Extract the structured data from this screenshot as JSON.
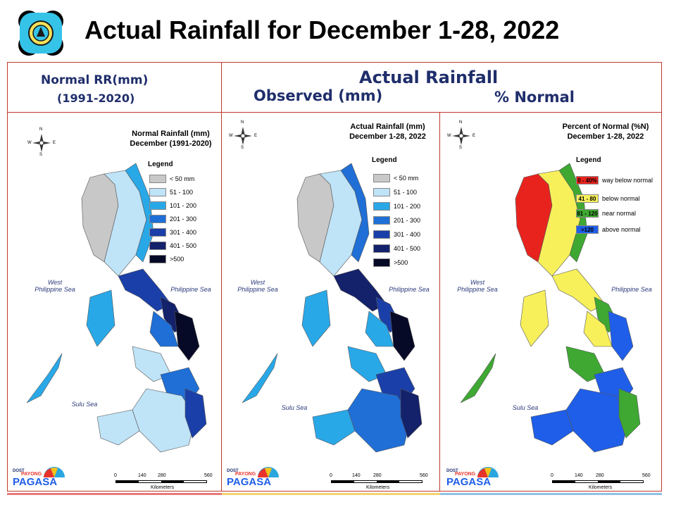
{
  "slide_title": "Actual Rainfall for December 1-28, 2022",
  "headers": {
    "normal_line1": "Normal RR(mm)",
    "normal_line2": "(1991-2020)",
    "actual_main": "Actual Rainfall",
    "observed": "Observed (mm)",
    "percent": "% Normal"
  },
  "compass": {
    "n": "N",
    "s": "S",
    "e": "E",
    "w": "W"
  },
  "maps": [
    {
      "title_line1": "Normal Rainfall (mm)",
      "title_line2": "December (1991-2020)",
      "legend_title": "Legend",
      "legend": [
        {
          "label": "< 50 mm",
          "color": "#c8c8c8"
        },
        {
          "label": "51 - 100",
          "color": "#bfe3f7"
        },
        {
          "label": "101 - 200",
          "color": "#29a8e8"
        },
        {
          "label": "201 - 300",
          "color": "#1f6fd6"
        },
        {
          "label": "301 - 400",
          "color": "#1a3fa8"
        },
        {
          "label": "401 - 500",
          "color": "#14216b"
        },
        {
          "label": ">500",
          "color": "#070a26"
        }
      ],
      "seas": {
        "west_line1": "West",
        "west_line2": "Philippine Sea",
        "east": "Philippine Sea",
        "sulu": "Sulu Sea"
      }
    },
    {
      "title_line1": "Actual Rainfall (mm)",
      "title_line2": "December 1-28, 2022",
      "legend_title": "Legend",
      "legend": [
        {
          "label": "< 50 mm",
          "color": "#c8c8c8"
        },
        {
          "label": "51 - 100",
          "color": "#bfe3f7"
        },
        {
          "label": "101 - 200",
          "color": "#29a8e8"
        },
        {
          "label": "201 - 300",
          "color": "#1f6fd6"
        },
        {
          "label": "301 - 400",
          "color": "#1a3fa8"
        },
        {
          "label": "401 - 500",
          "color": "#14216b"
        },
        {
          "label": ">500",
          "color": "#070a26"
        }
      ],
      "seas": {
        "west_line1": "West",
        "west_line2": "Philippine Sea",
        "east": "Philippine Sea",
        "sulu": "Sulu Sea"
      }
    },
    {
      "title_line1": "Percent of Normal (%N)",
      "title_line2": "December 1-28, 2022",
      "legend_title": "Legend",
      "legend": [
        {
          "swatch": "0 - 40%",
          "label": "way below normal",
          "color": "#e8231e"
        },
        {
          "swatch": "41 - 80",
          "label": "below normal",
          "color": "#f7f05a"
        },
        {
          "swatch": "81 - 120",
          "label": "near normal",
          "color": "#3ea832"
        },
        {
          "swatch": ">120",
          "label": "above normal",
          "color": "#1f5ee8"
        }
      ],
      "seas": {
        "west_line1": "West",
        "west_line2": "Philippine Sea",
        "east": "Philippine Sea",
        "sulu": "Sulu Sea"
      }
    }
  ],
  "scale": {
    "ticks": [
      "0",
      "140",
      "280",
      "560"
    ],
    "unit": "Kilometers"
  },
  "logo_text": {
    "small": "DOST",
    "brand": "PAGASA",
    "tag": "PAYONG"
  }
}
